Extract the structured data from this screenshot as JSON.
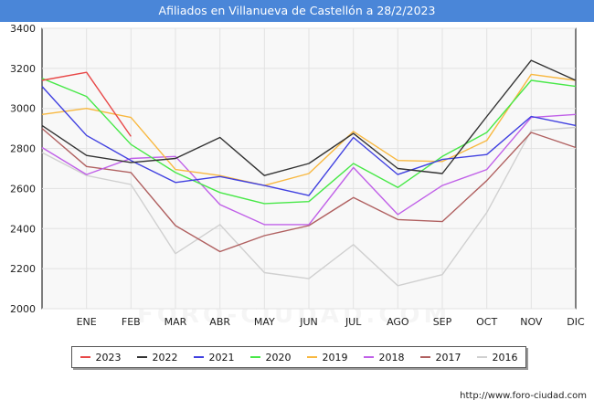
{
  "title": "Afiliados en Villanueva de Castellón a 28/2/2023",
  "source": "http://www.foro-ciudad.com",
  "watermark": "FORO-CIUDAD.COM",
  "chart_data": {
    "type": "line",
    "title": "Afiliados en Villanueva de Castellón a 28/2/2023",
    "xlabel": "",
    "ylabel": "",
    "categories": [
      "",
      "ENE",
      "FEB",
      "MAR",
      "ABR",
      "MAY",
      "JUN",
      "JUL",
      "AGO",
      "SEP",
      "OCT",
      "NOV",
      "DIC"
    ],
    "ylim": [
      2000,
      3400
    ],
    "yticks": [
      2000,
      2200,
      2400,
      2600,
      2800,
      3000,
      3200,
      3400
    ],
    "grid": true,
    "legend": "bottom",
    "series": [
      {
        "name": "2023",
        "color": "#e84848",
        "values": [
          3140,
          3180,
          2860,
          null,
          null,
          null,
          null,
          null,
          null,
          null,
          null,
          null,
          null
        ]
      },
      {
        "name": "2022",
        "color": "#333333",
        "values": [
          2915,
          2765,
          2730,
          2750,
          2855,
          2665,
          2725,
          2875,
          2700,
          2675,
          2960,
          3240,
          3140
        ]
      },
      {
        "name": "2021",
        "color": "#4040e0",
        "values": [
          3110,
          2865,
          2740,
          2630,
          2660,
          2615,
          2565,
          2855,
          2670,
          2745,
          2770,
          2960,
          2915
        ]
      },
      {
        "name": "2020",
        "color": "#48e848",
        "values": [
          3150,
          3060,
          2820,
          2680,
          2580,
          2525,
          2535,
          2725,
          2605,
          2760,
          2880,
          3140,
          3110
        ]
      },
      {
        "name": "2019",
        "color": "#f8b840",
        "values": [
          2970,
          3000,
          2955,
          2695,
          2665,
          2615,
          2675,
          2885,
          2740,
          2735,
          2840,
          3170,
          3140
        ]
      },
      {
        "name": "2018",
        "color": "#c060e8",
        "values": [
          2805,
          2670,
          2750,
          2760,
          2520,
          2420,
          2420,
          2705,
          2470,
          2615,
          2695,
          2955,
          2970
        ]
      },
      {
        "name": "2017",
        "color": "#b06060",
        "values": [
          2900,
          2710,
          2680,
          2415,
          2285,
          2365,
          2415,
          2555,
          2445,
          2435,
          2640,
          2880,
          2805
        ]
      },
      {
        "name": "2016",
        "color": "#d0d0d0",
        "values": [
          2780,
          2665,
          2620,
          2275,
          2420,
          2180,
          2150,
          2320,
          2115,
          2170,
          2480,
          2890,
          2905
        ]
      }
    ]
  }
}
